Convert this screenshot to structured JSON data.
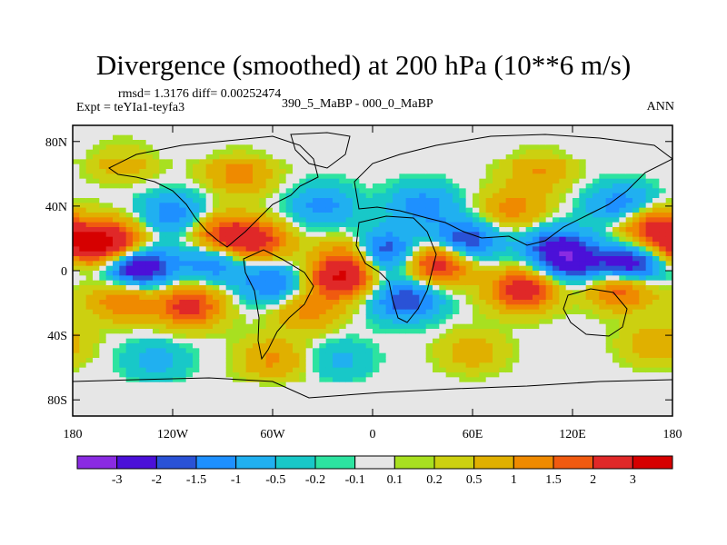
{
  "chart_data": {
    "type": "heatmap",
    "title": "Divergence (smoothed) at 200 hPa (10**6 m/s)",
    "subtitle_left_top": "rmsd= 1.3176 diff= 0.00252474",
    "subtitle_left": "Expt = teYIa1-teyfa3",
    "subtitle_center": "390_5_MaBP - 000_0_MaBP",
    "subtitle_right": "ANN",
    "x_tick_labels": [
      "180",
      "120W",
      "60W",
      "0",
      "60E",
      "120E",
      "180"
    ],
    "y_tick_labels": [
      "80N",
      "40N",
      "0",
      "40S",
      "80S"
    ],
    "xlim": [
      -180,
      180
    ],
    "ylim": [
      -90,
      90
    ],
    "x_ticks": [
      -180,
      -120,
      -60,
      0,
      60,
      120,
      180
    ],
    "y_ticks": [
      80,
      40,
      0,
      -40,
      -80
    ],
    "colorbar": {
      "labels": [
        "-3",
        "-2",
        "-1.5",
        "-1",
        "-0.5",
        "-0.2",
        "-0.1",
        "0.1",
        "0.2",
        "0.5",
        "1",
        "1.5",
        "2",
        "3"
      ],
      "levels": [
        -3,
        -2,
        -1.5,
        -1,
        -0.5,
        -0.2,
        -0.1,
        0.1,
        0.2,
        0.5,
        1,
        1.5,
        2,
        3
      ],
      "colors": [
        "#8a2be2",
        "#4b10d8",
        "#2a52d6",
        "#1e90ff",
        "#20b0f0",
        "#18c8c8",
        "#2de3a0",
        "#e6e6e6",
        "#a8e020",
        "#ccd010",
        "#e0b000",
        "#ef8a00",
        "#f05a10",
        "#e02828",
        "#d60000"
      ]
    },
    "field_features": [
      {
        "lon": -155,
        "lat": 18,
        "value": 2.6
      },
      {
        "lon": -175,
        "lat": 16,
        "value": 2.2
      },
      {
        "lon": -140,
        "lat": 2,
        "value": -3.0
      },
      {
        "lon": -110,
        "lat": -22,
        "value": 2.3
      },
      {
        "lon": -150,
        "lat": -18,
        "value": 1.6
      },
      {
        "lon": -95,
        "lat": 6,
        "value": -1.6
      },
      {
        "lon": -120,
        "lat": 35,
        "value": -1.4
      },
      {
        "lon": -90,
        "lat": 22,
        "value": 2.0
      },
      {
        "lon": -70,
        "lat": 18,
        "value": 2.2
      },
      {
        "lon": -60,
        "lat": -8,
        "value": -1.6
      },
      {
        "lon": -40,
        "lat": -25,
        "value": 1.2
      },
      {
        "lon": -20,
        "lat": -5,
        "value": 2.8
      },
      {
        "lon": -10,
        "lat": 10,
        "value": 1.8
      },
      {
        "lon": 5,
        "lat": 12,
        "value": -2.6
      },
      {
        "lon": 20,
        "lat": -18,
        "value": -2.0
      },
      {
        "lon": 40,
        "lat": 5,
        "value": 2.7
      },
      {
        "lon": 55,
        "lat": 18,
        "value": -2.2
      },
      {
        "lon": 90,
        "lat": -12,
        "value": 2.6
      },
      {
        "lon": 110,
        "lat": 15,
        "value": -1.8
      },
      {
        "lon": 120,
        "lat": 5,
        "value": -2.0
      },
      {
        "lon": 155,
        "lat": 3,
        "value": -3.0
      },
      {
        "lon": 150,
        "lat": -10,
        "value": 2.3
      },
      {
        "lon": 165,
        "lat": 28,
        "value": 2.1
      },
      {
        "lon": 150,
        "lat": 40,
        "value": -1.6
      },
      {
        "lon": 85,
        "lat": 38,
        "value": 1.2
      },
      {
        "lon": 30,
        "lat": 40,
        "value": -1.3
      },
      {
        "lon": -30,
        "lat": 40,
        "value": -1.2
      },
      {
        "lon": -80,
        "lat": 60,
        "value": 1.3
      },
      {
        "lon": -150,
        "lat": 68,
        "value": 0.8
      },
      {
        "lon": 100,
        "lat": 62,
        "value": 1.0
      },
      {
        "lon": -60,
        "lat": -55,
        "value": 1.1
      },
      {
        "lon": 60,
        "lat": -50,
        "value": 0.8
      },
      {
        "lon": -20,
        "lat": -55,
        "value": -0.6
      },
      {
        "lon": 170,
        "lat": -45,
        "value": 0.9
      },
      {
        "lon": -130,
        "lat": -55,
        "value": -0.7
      }
    ]
  }
}
